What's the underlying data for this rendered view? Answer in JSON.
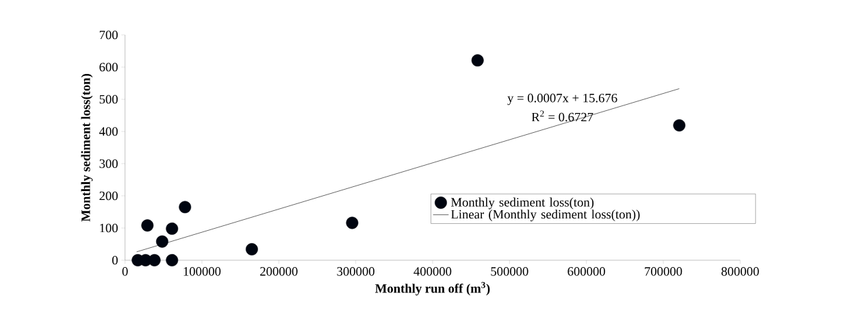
{
  "chart_data": {
    "type": "scatter",
    "xlabel": "Monthly run off (m$^{3}$)",
    "ylabel": "Monthly sediment loss(ton)",
    "annotations": [
      "y = 0.0007x + 15.676",
      "R$^{2}$ = 0.6727"
    ],
    "series": [
      {
        "name": "Monthly sediment loss(ton)",
        "color": "#000510",
        "marker": "circle",
        "x": [
          16600,
          26700,
          38300,
          61100,
          29100,
          48300,
          61100,
          78000,
          164900,
          295400,
          458500,
          720800
        ],
        "values": [
          0,
          0,
          0,
          0,
          108,
          58,
          98,
          165,
          34,
          116,
          621,
          419
        ]
      },
      {
        "name": "Linear (Monthly sediment loss(ton))",
        "type": "line",
        "color": "#404040",
        "marker": "none",
        "line_style": "solid",
        "x": [
          15100,
          720800
        ],
        "values": [
          26,
          533
        ]
      }
    ],
    "xlim": [
      0,
      800000
    ],
    "ylim": [
      0,
      700
    ],
    "xticks": [
      0,
      100000,
      200000,
      300000,
      400000,
      500000,
      600000,
      700000,
      800000
    ],
    "yticks": [
      0,
      100,
      200,
      300,
      400,
      500,
      600,
      700
    ],
    "grid": false,
    "legend": "bottom right"
  }
}
